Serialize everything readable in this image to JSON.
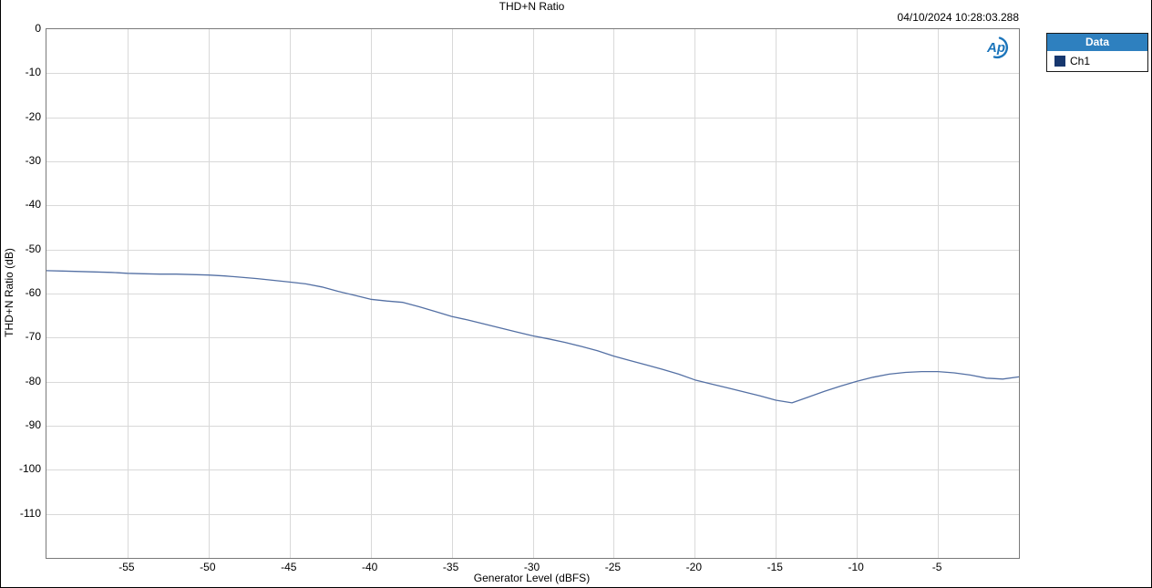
{
  "header": {
    "title": "THD+N Ratio",
    "timestamp": "04/10/2024 10:28:03.288"
  },
  "logo": {
    "name": "Audio Precision",
    "text": "Ap",
    "color": "#1c75bb"
  },
  "legend": {
    "header": "Data",
    "header_bg": "#2e80bf",
    "entries": [
      {
        "label": "Ch1",
        "swatch_color": "#17376e"
      }
    ]
  },
  "colors": {
    "gridline": "#d9d9d9",
    "plot_border": "#7a7a7a",
    "text": "#000000"
  },
  "chart_data": {
    "type": "line",
    "title": "THD+N Ratio",
    "xlabel": "Generator Level (dBFS)",
    "ylabel": "THD+N Ratio (dB)",
    "xlim": [
      -60,
      0
    ],
    "ylim": [
      -120,
      0
    ],
    "x_ticks": [
      -55,
      -50,
      -45,
      -40,
      -35,
      -30,
      -25,
      -20,
      -15,
      -10,
      -5
    ],
    "y_ticks": [
      0,
      -10,
      -20,
      -30,
      -40,
      -50,
      -60,
      -70,
      -80,
      -90,
      -100,
      -110
    ],
    "grid": true,
    "legend_position": "outside-right",
    "series": [
      {
        "name": "Ch1",
        "color": "#5470a4",
        "x": [
          -60,
          -59,
          -58,
          -57,
          -56,
          -55,
          -54,
          -53,
          -52,
          -51,
          -50,
          -49,
          -48,
          -47,
          -46,
          -45,
          -44,
          -43,
          -42,
          -41,
          -40,
          -39,
          -38,
          -37,
          -36,
          -35,
          -34,
          -33,
          -32,
          -31,
          -30,
          -29,
          -28,
          -27,
          -26,
          -25,
          -24,
          -23,
          -22,
          -21,
          -20,
          -19,
          -18,
          -17,
          -16,
          -15,
          -14,
          -13,
          -12,
          -11,
          -10,
          -9,
          -8,
          -7,
          -6,
          -5,
          -4,
          -3,
          -2,
          -1,
          0
        ],
        "y": [
          -54.8,
          -54.9,
          -55.0,
          -55.1,
          -55.2,
          -55.4,
          -55.5,
          -55.6,
          -55.6,
          -55.7,
          -55.8,
          -56.0,
          -56.3,
          -56.6,
          -57.0,
          -57.4,
          -57.8,
          -58.5,
          -59.5,
          -60.4,
          -61.3,
          -61.7,
          -62.0,
          -63.0,
          -64.1,
          -65.2,
          -66.0,
          -66.9,
          -67.8,
          -68.7,
          -69.6,
          -70.3,
          -71.1,
          -72.0,
          -73.0,
          -74.2,
          -75.2,
          -76.2,
          -77.2,
          -78.3,
          -79.6,
          -80.5,
          -81.4,
          -82.3,
          -83.2,
          -84.2,
          -84.8,
          -83.5,
          -82.2,
          -81.0,
          -79.9,
          -79.0,
          -78.3,
          -77.9,
          -77.7,
          -77.7,
          -78.0,
          -78.5,
          -79.2,
          -79.4,
          -78.9
        ]
      }
    ]
  }
}
